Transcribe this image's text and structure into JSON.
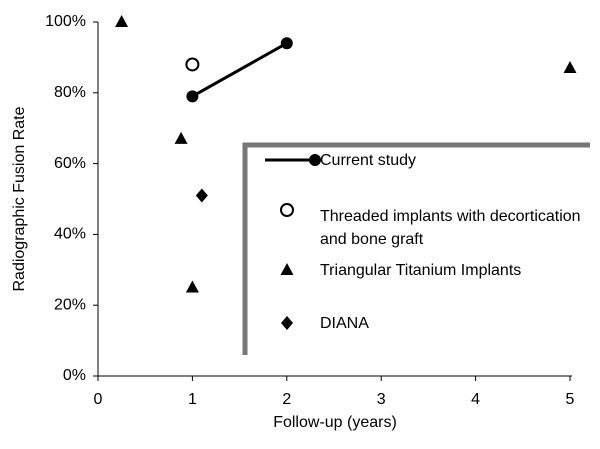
{
  "chart_data": {
    "type": "scatter",
    "xlabel": "Follow-up (years)",
    "ylabel": "Radiographic Fusion Rate",
    "xlim": [
      0,
      5
    ],
    "xticks": [
      0,
      1,
      2,
      3,
      4,
      5
    ],
    "ylim": [
      0,
      100
    ],
    "yticks": [
      {
        "value": 0,
        "label": "0%"
      },
      {
        "value": 20,
        "label": "20%"
      },
      {
        "value": 40,
        "label": "40%"
      },
      {
        "value": 60,
        "label": "60%"
      },
      {
        "value": 80,
        "label": "80%"
      },
      {
        "value": 100,
        "label": "100%"
      }
    ],
    "series": [
      {
        "name": "Current study",
        "color": "#000000",
        "marker": "circle",
        "line": true,
        "x": [
          1,
          2
        ],
        "values": [
          79,
          94
        ]
      },
      {
        "name": "Threaded implants with decortication and bone graft",
        "color": "#000000",
        "marker": "open-circle",
        "line": false,
        "x": [
          1
        ],
        "values": [
          88
        ]
      },
      {
        "name": "Triangular Titanium Implants",
        "color": "#000000",
        "marker": "triangle",
        "line": false,
        "x": [
          0.25,
          0.88,
          1,
          5
        ],
        "values": [
          100,
          67,
          25,
          87
        ]
      },
      {
        "name": "DIANA",
        "color": "#000000",
        "marker": "diamond",
        "line": false,
        "x": [
          1.1
        ],
        "values": [
          51
        ]
      }
    ]
  }
}
